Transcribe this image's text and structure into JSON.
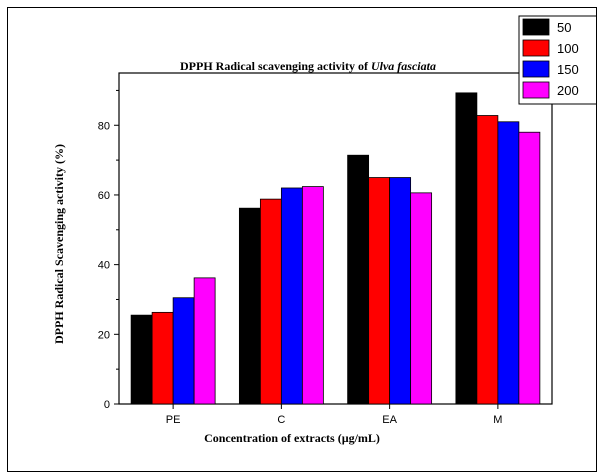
{
  "chart_data": {
    "type": "bar",
    "title_prefix": "DPPH Radical scavenging activity of ",
    "title_species": "Ulva fasciata",
    "xlabel": "Concentration of extracts (µg/mL)",
    "ylabel": "DPPH Radical Scavenging activity (%)",
    "categories": [
      "PE",
      "C",
      "EA",
      "M"
    ],
    "ylim": [
      0,
      95
    ],
    "yticks": [
      0,
      20,
      40,
      60,
      80
    ],
    "grid": false,
    "legend_position": "top-right",
    "series": [
      {
        "name": "50",
        "color": "#000000",
        "values": [
          25.5,
          56.2,
          71.4,
          89.3
        ]
      },
      {
        "name": "100",
        "color": "#ff0000",
        "values": [
          26.3,
          58.8,
          65.0,
          82.8
        ]
      },
      {
        "name": "150",
        "color": "#0000ff",
        "values": [
          30.5,
          62.0,
          65.0,
          81.0
        ]
      },
      {
        "name": "200",
        "color": "#ff00ff",
        "values": [
          36.2,
          62.4,
          60.6,
          78.0
        ]
      }
    ]
  }
}
